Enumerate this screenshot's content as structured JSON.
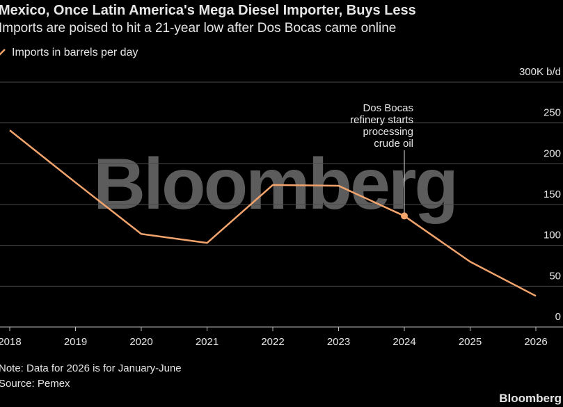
{
  "chart_data": {
    "type": "line",
    "title": "Mexico, Once Latin America's Mega Diesel Importer, Buys Less",
    "subtitle": "Imports are poised to hit a 21-year low after Dos Bocas came online",
    "categories": [
      "2018",
      "2019",
      "2020",
      "2021",
      "2022",
      "2023",
      "2024",
      "2025",
      "2026"
    ],
    "series": [
      {
        "name": "Imports in barrels per day",
        "color": "#f2a46c",
        "values": [
          241,
          177,
          114,
          103,
          174,
          173,
          136,
          80,
          38
        ]
      }
    ],
    "ylim": [
      0,
      300
    ],
    "yticks": [
      0,
      50,
      100,
      150,
      200,
      250,
      {
        "value": 300,
        "label": "300K b/d"
      }
    ],
    "grid": true,
    "annotation": {
      "x": "2024",
      "lines": [
        "Dos Bocas",
        "refinery starts",
        "processing",
        "crude oil"
      ]
    },
    "watermark": "Bloomberg",
    "notes": [
      "Note: Data for 2026 is for January-June",
      "Source: Pemex"
    ],
    "logo": "Bloomberg"
  }
}
